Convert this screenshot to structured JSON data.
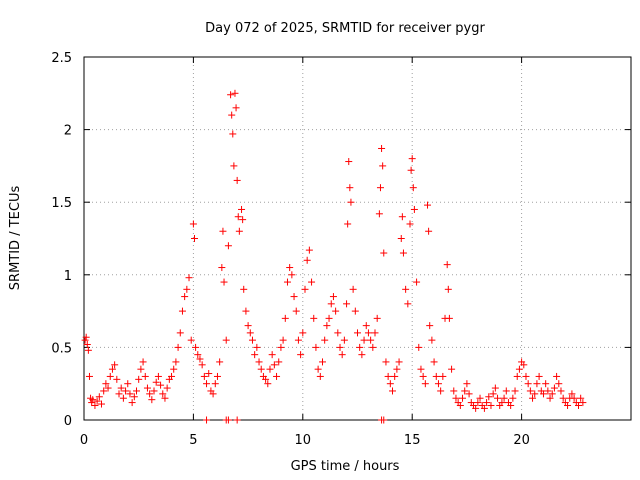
{
  "chart_data": {
    "type": "scatter",
    "title": "Day 072 of 2025, SRMTID for receiver pygr",
    "xlabel": "GPS time / hours",
    "ylabel": "SRMTID / TECUs",
    "xlim": [
      0,
      25
    ],
    "ylim": [
      0,
      2.5
    ],
    "xticks": [
      0,
      5,
      10,
      15,
      20
    ],
    "yticks": [
      0,
      0.5,
      1,
      1.5,
      2,
      2.5
    ],
    "xtick_labels": [
      "0",
      "5",
      "10",
      "15",
      "20"
    ],
    "ytick_labels": [
      "0",
      "0.5",
      "1",
      "1.5",
      "2",
      "2.5"
    ],
    "grid": true,
    "marker": "+",
    "color": "#ff0000",
    "series": [
      {
        "name": "SRMTID",
        "points": [
          [
            0.05,
            0.55
          ],
          [
            0.1,
            0.57
          ],
          [
            0.15,
            0.52
          ],
          [
            0.2,
            0.48
          ],
          [
            0.25,
            0.3
          ],
          [
            0.3,
            0.15
          ],
          [
            0.35,
            0.12
          ],
          [
            0.4,
            0.14
          ],
          [
            0.5,
            0.1
          ],
          [
            0.6,
            0.13
          ],
          [
            0.7,
            0.16
          ],
          [
            0.8,
            0.11
          ],
          [
            0.9,
            0.2
          ],
          [
            1.0,
            0.25
          ],
          [
            1.1,
            0.22
          ],
          [
            1.2,
            0.3
          ],
          [
            1.3,
            0.35
          ],
          [
            1.4,
            0.38
          ],
          [
            1.5,
            0.28
          ],
          [
            1.6,
            0.18
          ],
          [
            1.7,
            0.22
          ],
          [
            1.8,
            0.15
          ],
          [
            1.9,
            0.2
          ],
          [
            2.0,
            0.25
          ],
          [
            2.1,
            0.18
          ],
          [
            2.2,
            0.12
          ],
          [
            2.3,
            0.16
          ],
          [
            2.4,
            0.2
          ],
          [
            2.5,
            0.28
          ],
          [
            2.6,
            0.35
          ],
          [
            2.7,
            0.4
          ],
          [
            2.8,
            0.3
          ],
          [
            2.9,
            0.22
          ],
          [
            3.0,
            0.18
          ],
          [
            3.1,
            0.14
          ],
          [
            3.2,
            0.2
          ],
          [
            3.3,
            0.26
          ],
          [
            3.4,
            0.3
          ],
          [
            3.5,
            0.24
          ],
          [
            3.6,
            0.18
          ],
          [
            3.7,
            0.15
          ],
          [
            3.8,
            0.22
          ],
          [
            3.9,
            0.28
          ],
          [
            4.0,
            0.3
          ],
          [
            4.1,
            0.35
          ],
          [
            4.2,
            0.4
          ],
          [
            4.3,
            0.5
          ],
          [
            4.4,
            0.6
          ],
          [
            4.5,
            0.75
          ],
          [
            4.6,
            0.85
          ],
          [
            4.7,
            0.9
          ],
          [
            4.8,
            0.98
          ],
          [
            4.9,
            0.55
          ],
          [
            5.0,
            1.35
          ],
          [
            5.05,
            1.25
          ],
          [
            5.1,
            0.5
          ],
          [
            5.2,
            0.45
          ],
          [
            5.3,
            0.42
          ],
          [
            5.4,
            0.38
          ],
          [
            5.5,
            0.3
          ],
          [
            5.6,
            0.25
          ],
          [
            5.7,
            0.32
          ],
          [
            5.8,
            0.2
          ],
          [
            5.9,
            0.18
          ],
          [
            6.0,
            0.25
          ],
          [
            6.1,
            0.3
          ],
          [
            6.2,
            0.4
          ],
          [
            6.3,
            1.05
          ],
          [
            6.35,
            1.3
          ],
          [
            6.4,
            0.95
          ],
          [
            6.5,
            0.55
          ],
          [
            6.6,
            1.2
          ],
          [
            6.7,
            2.24
          ],
          [
            6.75,
            2.1
          ],
          [
            6.8,
            1.97
          ],
          [
            6.85,
            1.75
          ],
          [
            6.9,
            2.25
          ],
          [
            6.95,
            2.15
          ],
          [
            7.0,
            1.65
          ],
          [
            7.05,
            1.4
          ],
          [
            7.1,
            1.3
          ],
          [
            7.2,
            1.45
          ],
          [
            7.25,
            1.38
          ],
          [
            7.3,
            0.9
          ],
          [
            7.4,
            0.75
          ],
          [
            7.5,
            0.65
          ],
          [
            7.6,
            0.6
          ],
          [
            7.7,
            0.55
          ],
          [
            7.8,
            0.45
          ],
          [
            7.9,
            0.5
          ],
          [
            8.0,
            0.4
          ],
          [
            8.1,
            0.35
          ],
          [
            8.2,
            0.3
          ],
          [
            8.3,
            0.28
          ],
          [
            8.4,
            0.25
          ],
          [
            8.5,
            0.35
          ],
          [
            8.6,
            0.45
          ],
          [
            8.7,
            0.38
          ],
          [
            8.8,
            0.3
          ],
          [
            8.9,
            0.4
          ],
          [
            9.0,
            0.5
          ],
          [
            9.1,
            0.55
          ],
          [
            9.2,
            0.7
          ],
          [
            9.3,
            0.95
          ],
          [
            9.4,
            1.05
          ],
          [
            9.5,
            1.0
          ],
          [
            9.6,
            0.85
          ],
          [
            9.7,
            0.75
          ],
          [
            9.8,
            0.55
          ],
          [
            9.9,
            0.45
          ],
          [
            10.0,
            0.6
          ],
          [
            10.1,
            0.9
          ],
          [
            10.2,
            1.1
          ],
          [
            10.3,
            1.17
          ],
          [
            10.4,
            0.95
          ],
          [
            10.5,
            0.7
          ],
          [
            10.6,
            0.5
          ],
          [
            10.7,
            0.35
          ],
          [
            10.8,
            0.3
          ],
          [
            10.9,
            0.4
          ],
          [
            11.0,
            0.55
          ],
          [
            11.1,
            0.65
          ],
          [
            11.2,
            0.7
          ],
          [
            11.3,
            0.8
          ],
          [
            11.4,
            0.85
          ],
          [
            11.5,
            0.75
          ],
          [
            11.6,
            0.6
          ],
          [
            11.7,
            0.5
          ],
          [
            11.8,
            0.45
          ],
          [
            11.9,
            0.55
          ],
          [
            12.0,
            0.8
          ],
          [
            12.05,
            1.35
          ],
          [
            12.1,
            1.78
          ],
          [
            12.15,
            1.6
          ],
          [
            12.2,
            1.5
          ],
          [
            12.3,
            0.9
          ],
          [
            12.4,
            0.75
          ],
          [
            12.5,
            0.6
          ],
          [
            12.6,
            0.5
          ],
          [
            12.7,
            0.45
          ],
          [
            12.8,
            0.55
          ],
          [
            12.9,
            0.65
          ],
          [
            13.0,
            0.6
          ],
          [
            13.1,
            0.55
          ],
          [
            13.2,
            0.5
          ],
          [
            13.3,
            0.6
          ],
          [
            13.4,
            0.7
          ],
          [
            13.5,
            1.42
          ],
          [
            13.55,
            1.6
          ],
          [
            13.6,
            1.87
          ],
          [
            13.65,
            1.75
          ],
          [
            13.7,
            1.15
          ],
          [
            13.8,
            0.4
          ],
          [
            13.9,
            0.3
          ],
          [
            14.0,
            0.25
          ],
          [
            14.1,
            0.2
          ],
          [
            14.2,
            0.3
          ],
          [
            14.3,
            0.35
          ],
          [
            14.4,
            0.4
          ],
          [
            14.5,
            1.25
          ],
          [
            14.55,
            1.4
          ],
          [
            14.6,
            1.15
          ],
          [
            14.7,
            0.9
          ],
          [
            14.8,
            0.8
          ],
          [
            14.9,
            1.35
          ],
          [
            14.95,
            1.72
          ],
          [
            15.0,
            1.8
          ],
          [
            15.05,
            1.6
          ],
          [
            15.1,
            1.45
          ],
          [
            15.2,
            0.95
          ],
          [
            15.3,
            0.5
          ],
          [
            15.4,
            0.35
          ],
          [
            15.5,
            0.3
          ],
          [
            15.6,
            0.25
          ],
          [
            15.7,
            1.48
          ],
          [
            15.75,
            1.3
          ],
          [
            15.8,
            0.65
          ],
          [
            15.9,
            0.55
          ],
          [
            16.0,
            0.4
          ],
          [
            16.1,
            0.3
          ],
          [
            16.2,
            0.25
          ],
          [
            16.3,
            0.2
          ],
          [
            16.4,
            0.3
          ],
          [
            16.5,
            0.7
          ],
          [
            16.6,
            1.07
          ],
          [
            16.65,
            0.9
          ],
          [
            16.7,
            0.7
          ],
          [
            16.8,
            0.35
          ],
          [
            16.9,
            0.2
          ],
          [
            17.0,
            0.15
          ],
          [
            17.1,
            0.12
          ],
          [
            17.2,
            0.1
          ],
          [
            17.3,
            0.15
          ],
          [
            17.4,
            0.2
          ],
          [
            17.5,
            0.25
          ],
          [
            17.6,
            0.18
          ],
          [
            17.7,
            0.12
          ],
          [
            17.8,
            0.1
          ],
          [
            17.9,
            0.08
          ],
          [
            18.0,
            0.12
          ],
          [
            18.1,
            0.15
          ],
          [
            18.2,
            0.1
          ],
          [
            18.3,
            0.08
          ],
          [
            18.4,
            0.12
          ],
          [
            18.5,
            0.16
          ],
          [
            18.6,
            0.1
          ],
          [
            18.7,
            0.18
          ],
          [
            18.8,
            0.22
          ],
          [
            18.9,
            0.15
          ],
          [
            19.0,
            0.1
          ],
          [
            19.1,
            0.12
          ],
          [
            19.2,
            0.15
          ],
          [
            19.3,
            0.2
          ],
          [
            19.4,
            0.12
          ],
          [
            19.5,
            0.1
          ],
          [
            19.6,
            0.15
          ],
          [
            19.7,
            0.2
          ],
          [
            19.8,
            0.3
          ],
          [
            19.9,
            0.35
          ],
          [
            20.0,
            0.4
          ],
          [
            20.1,
            0.38
          ],
          [
            20.2,
            0.3
          ],
          [
            20.3,
            0.25
          ],
          [
            20.4,
            0.2
          ],
          [
            20.5,
            0.15
          ],
          [
            20.6,
            0.18
          ],
          [
            20.7,
            0.25
          ],
          [
            20.8,
            0.3
          ],
          [
            20.9,
            0.2
          ],
          [
            21.0,
            0.18
          ],
          [
            21.1,
            0.25
          ],
          [
            21.2,
            0.2
          ],
          [
            21.3,
            0.15
          ],
          [
            21.4,
            0.18
          ],
          [
            21.5,
            0.22
          ],
          [
            21.6,
            0.3
          ],
          [
            21.7,
            0.25
          ],
          [
            21.8,
            0.2
          ],
          [
            21.9,
            0.15
          ],
          [
            22.0,
            0.12
          ],
          [
            22.1,
            0.1
          ],
          [
            22.2,
            0.15
          ],
          [
            22.3,
            0.18
          ],
          [
            22.4,
            0.15
          ],
          [
            22.5,
            0.12
          ],
          [
            22.6,
            0.1
          ],
          [
            22.7,
            0.15
          ],
          [
            22.8,
            0.12
          ],
          [
            5.6,
            0.0
          ],
          [
            6.5,
            0.0
          ],
          [
            6.6,
            0.0
          ],
          [
            7.0,
            0.0
          ],
          [
            13.6,
            0.0
          ],
          [
            13.7,
            0.0
          ]
        ]
      }
    ]
  }
}
